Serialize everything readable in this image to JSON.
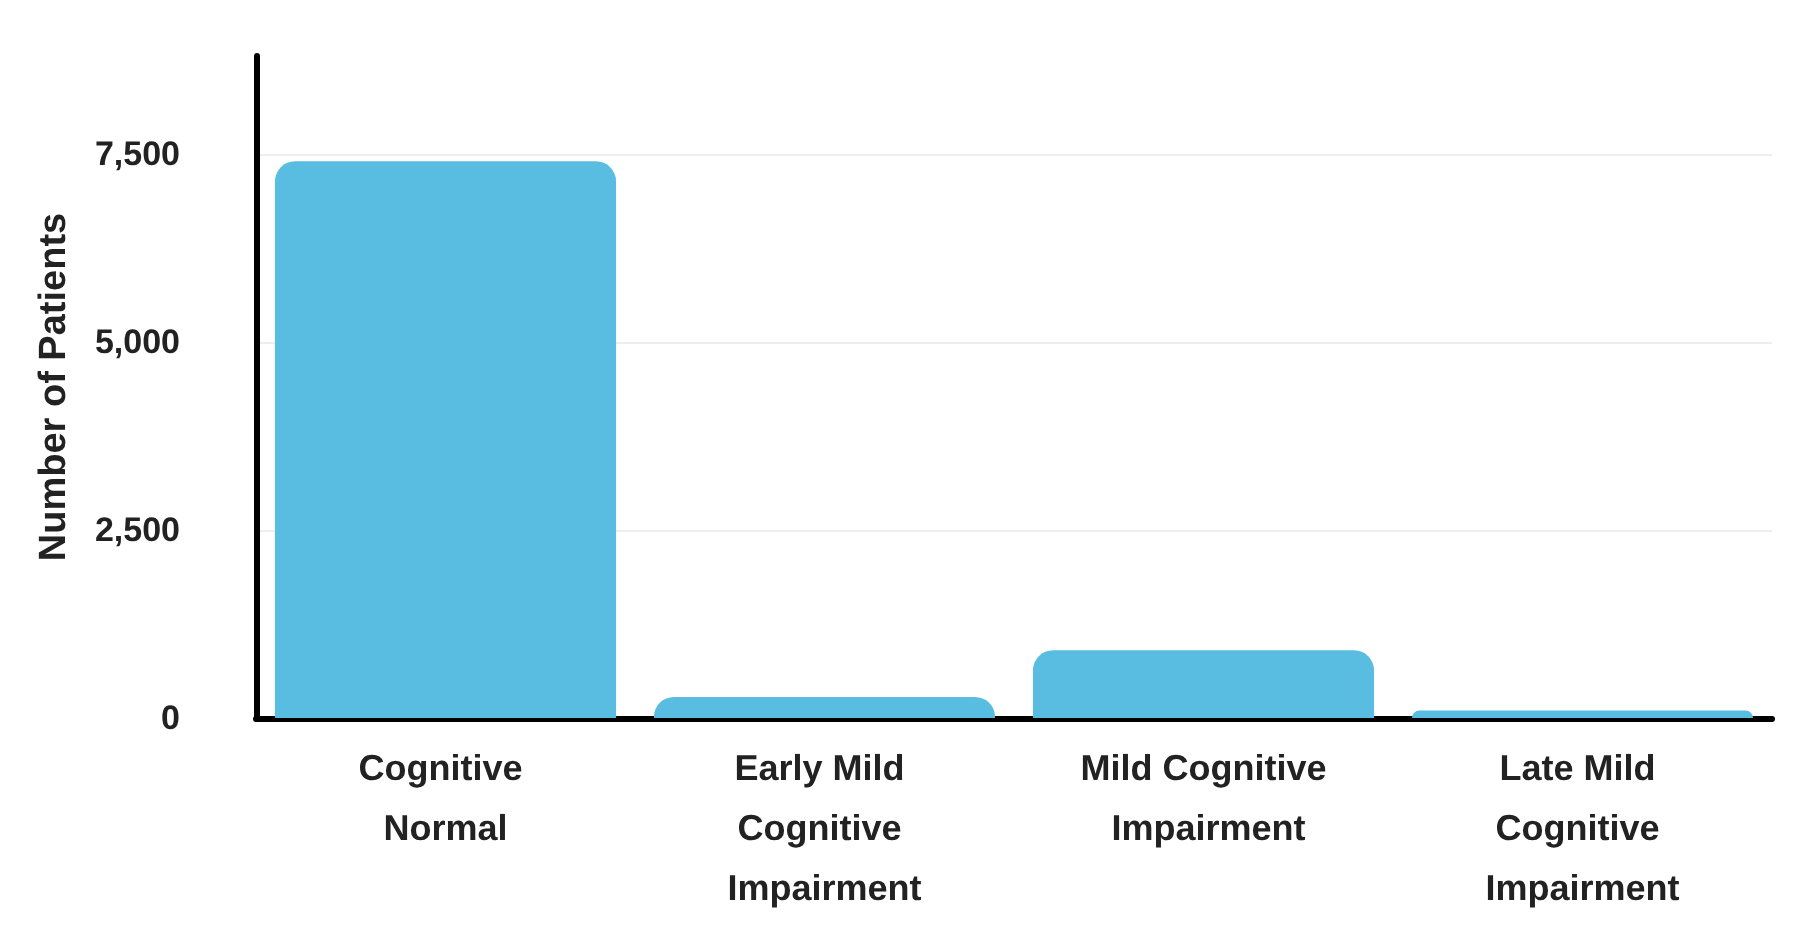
{
  "chart_data": {
    "type": "bar",
    "ylabel": "Number of Patients",
    "categories": [
      "Cognitive Normal",
      "Early Mild Cognitive Impairment",
      "Mild Cognitive Impairment",
      "Late Mild Cognitive Impairment"
    ],
    "values": [
      7400,
      280,
      900,
      100
    ],
    "color": "#58bde0",
    "ylim": [
      0,
      8800
    ],
    "yticks": [
      0,
      {
        "value": 2500,
        "label": "2,500"
      },
      {
        "value": 5000,
        "label": "5,000"
      },
      {
        "value": 7500,
        "label": "7,500"
      }
    ],
    "grid": "y"
  }
}
